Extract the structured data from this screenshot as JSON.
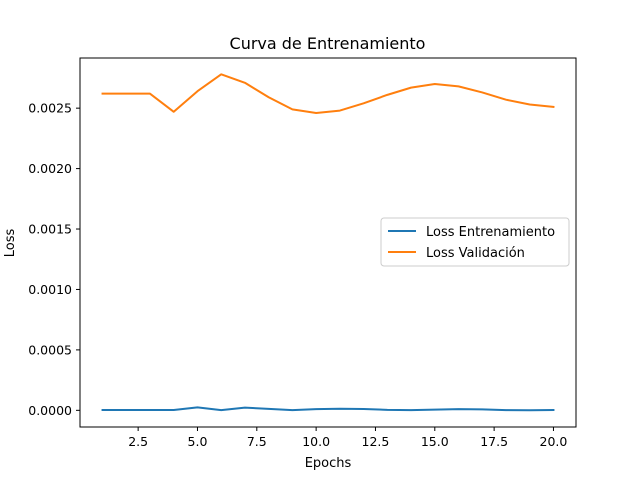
{
  "chart_data": {
    "type": "line",
    "title": "Curva de Entrenamiento",
    "xlabel": "Epochs",
    "ylabel": "Loss",
    "xlim": [
      0.05,
      20.95
    ],
    "ylim": [
      -0.000138,
      0.002915
    ],
    "xticks": [
      2.5,
      5.0,
      7.5,
      10.0,
      12.5,
      15.0,
      17.5,
      20.0
    ],
    "xtick_labels": [
      "2.5",
      "5.0",
      "7.5",
      "10.0",
      "12.5",
      "15.0",
      "17.5",
      "20.0"
    ],
    "yticks": [
      0.0,
      0.0005,
      0.001,
      0.0015,
      0.002,
      0.0025
    ],
    "ytick_labels": [
      "0.0000",
      "0.0005",
      "0.0010",
      "0.0015",
      "0.0020",
      "0.0025"
    ],
    "grid": false,
    "legend_position": "center-right",
    "x": [
      1,
      2,
      3,
      4,
      5,
      6,
      7,
      8,
      9,
      10,
      11,
      12,
      13,
      14,
      15,
      16,
      17,
      18,
      19,
      20
    ],
    "series": [
      {
        "name": "Loss Entrenamiento",
        "color": "#1f77b4",
        "values": [
          3e-06,
          3e-06,
          3e-06,
          3e-06,
          2.4e-05,
          2e-06,
          2.2e-05,
          1.2e-05,
          2e-06,
          1e-05,
          1.3e-05,
          1.1e-05,
          4e-06,
          2e-06,
          6e-06,
          1e-05,
          8e-06,
          2e-06,
          1e-06,
          3e-06
        ]
      },
      {
        "name": "Loss Validación",
        "color": "#ff7f0e",
        "values": [
          0.00262,
          0.00262,
          0.00262,
          0.00247,
          0.00264,
          0.00278,
          0.00271,
          0.00259,
          0.00249,
          0.00246,
          0.00248,
          0.00254,
          0.00261,
          0.00267,
          0.0027,
          0.00268,
          0.00263,
          0.00257,
          0.00253,
          0.00251
        ]
      }
    ]
  }
}
